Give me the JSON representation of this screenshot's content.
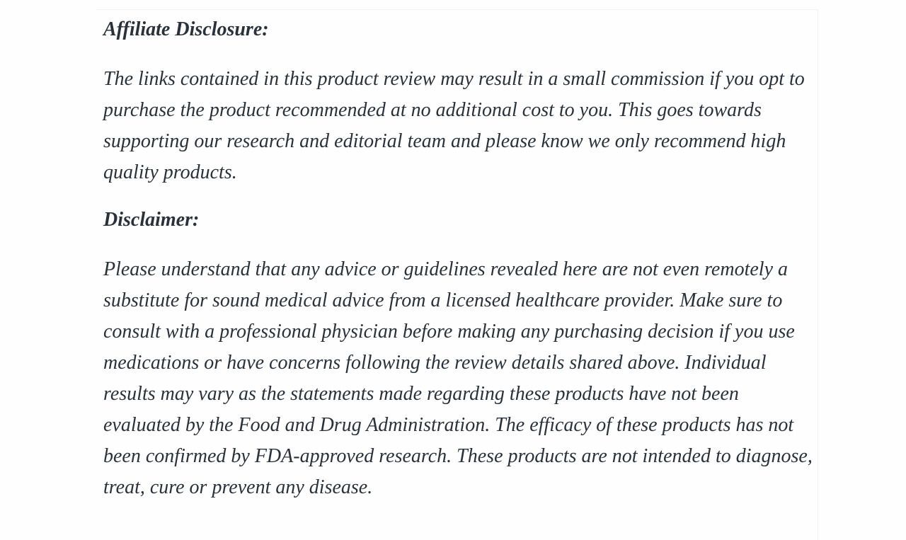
{
  "page": {
    "colors": {
      "background": "#fefefe",
      "text": "#29323a",
      "divider": "#f0f0f0"
    }
  },
  "article": {
    "sections": [
      {
        "heading": "Affiliate Disclosure:",
        "paragraph": "The links contained in this product review may result in a small commission if you opt to purchase the product recommended at no additional cost to you. This goes towards supporting our research and editorial team and please know we only recommend high quality products."
      },
      {
        "heading": "Disclaimer:",
        "paragraph": "Please understand that any advice or guidelines revealed here are not even remotely a substitute for sound medical advice from a licensed healthcare provider. Make sure to consult with a professional physician before making any purchasing decision if you use medications or have concerns following the review details shared above. Individual results may vary as the statements made regarding these products have not been evaluated by the Food and Drug Administration. The efficacy of these products has not been confirmed by FDA-approved research. These products are not intended to diagnose, treat, cure or prevent any disease."
      }
    ]
  }
}
